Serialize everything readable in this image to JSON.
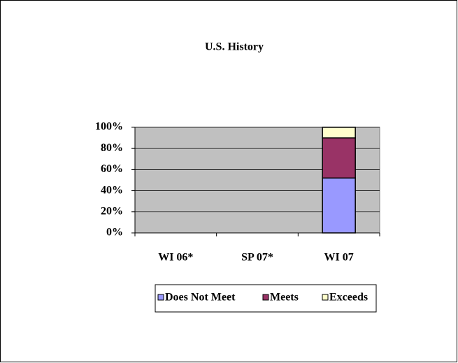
{
  "chart_data": {
    "type": "stacked_bar",
    "title": "U.S. History",
    "categories": [
      "WI 06*",
      "SP 07*",
      "WI 07"
    ],
    "series": [
      {
        "name": "Does Not Meet",
        "color": "#9999ff",
        "values": [
          null,
          null,
          52
        ]
      },
      {
        "name": "Meets",
        "color": "#993366",
        "values": [
          null,
          null,
          38
        ]
      },
      {
        "name": "Exceeds",
        "color": "#ffffcc",
        "values": [
          null,
          null,
          10
        ]
      }
    ],
    "ylim": [
      0,
      100
    ],
    "yticks": [
      {
        "value": 0,
        "label": "0%"
      },
      {
        "value": 20,
        "label": "20%"
      },
      {
        "value": 40,
        "label": "40%"
      },
      {
        "value": 60,
        "label": "60%"
      },
      {
        "value": 80,
        "label": "80%"
      },
      {
        "value": 100,
        "label": "100%"
      }
    ],
    "grid": true,
    "plot_color": "#c0c0c0",
    "legend": "bottom"
  }
}
